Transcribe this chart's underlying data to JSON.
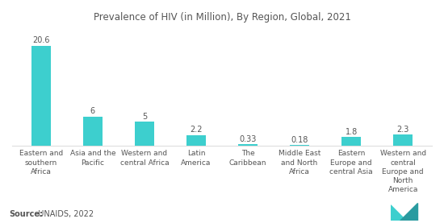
{
  "title": "Prevalence of HIV (in Million), By Region, Global, 2021",
  "categories": [
    "Eastern and\nsouthern\nAfrica",
    "Asia and the\nPacific",
    "Western and\ncentral Africa",
    "Latin\nAmerica",
    "The\nCaribbean",
    "Middle East\nand North\nAfrica",
    "Eastern\nEurope and\ncentral Asia",
    "Western and\ncentral\nEurope and\nNorth\nAmerica"
  ],
  "values": [
    20.6,
    6,
    5,
    2.2,
    0.33,
    0.18,
    1.8,
    2.3
  ],
  "bar_color": "#3DCFCE",
  "value_labels": [
    "20.6",
    "6",
    "5",
    "2.2",
    "0.33",
    "0.18",
    "1.8",
    "2.3"
  ],
  "source_label": "Source:",
  "source_value": "  UNAIDS, 2022",
  "title_fontsize": 8.5,
  "label_fontsize": 6.5,
  "value_fontsize": 7.0,
  "source_fontsize": 7.0,
  "background_color": "#ffffff",
  "ylim": [
    0,
    24
  ],
  "bar_width": 0.38
}
